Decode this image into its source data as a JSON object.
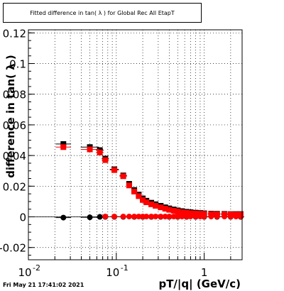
{
  "header": {
    "title": "Fitted difference in tan( λ ) for Global Rec All EtapT"
  },
  "footer": {
    "timestamp": "Fri May 21 17:41:02 2021"
  },
  "chart_data": {
    "type": "scatter",
    "title": "Fitted difference in tan( λ ) for Global Rec All EtapT",
    "xlabel": "pT/|q| (GeV/c)",
    "ylabel": "difference in tan( λ )",
    "xscale": "log",
    "xlim": [
      0.01,
      2.7
    ],
    "ylim": [
      -0.028,
      0.122
    ],
    "grid": true,
    "x_ticks": [
      {
        "value": 0.01,
        "label": "10",
        "sup": "-2"
      },
      {
        "value": 0.1,
        "label": "10",
        "sup": "-1"
      },
      {
        "value": 1,
        "label": "1",
        "sup": ""
      }
    ],
    "y_ticks": [
      {
        "value": -0.02,
        "label": "-0.02"
      },
      {
        "value": 0,
        "label": "0"
      },
      {
        "value": 0.02,
        "label": "0.02"
      },
      {
        "value": 0.04,
        "label": "0.04"
      },
      {
        "value": 0.06,
        "label": "0.06"
      },
      {
        "value": 0.08,
        "label": "0.08"
      },
      {
        "value": 0.1,
        "label": "0.1"
      },
      {
        "value": 0.12,
        "label": "0.12"
      }
    ],
    "series": [
      {
        "marker": "square",
        "color": "#000000",
        "x": [
          0.025,
          0.05,
          0.065,
          0.075,
          0.095,
          0.12,
          0.14,
          0.16,
          0.18,
          0.2,
          0.22,
          0.25,
          0.28,
          0.32,
          0.36,
          0.4,
          0.45,
          0.5,
          0.56,
          0.63,
          0.7,
          0.8,
          0.9,
          1.0,
          1.2,
          1.4,
          1.7,
          2.0,
          2.3,
          2.6
        ],
        "y": [
          0.0475,
          0.0455,
          0.0435,
          0.038,
          0.031,
          0.027,
          0.0215,
          0.0175,
          0.0145,
          0.012,
          0.0105,
          0.0092,
          0.0082,
          0.0072,
          0.0062,
          0.0055,
          0.0048,
          0.0042,
          0.0037,
          0.0033,
          0.003,
          0.0027,
          0.0025,
          0.0023,
          0.0021,
          0.002,
          0.0019,
          0.0018,
          0.0018,
          0.0018
        ]
      },
      {
        "marker": "square",
        "color": "#ff0000",
        "x": [
          0.025,
          0.05,
          0.065,
          0.075,
          0.095,
          0.12,
          0.14,
          0.16,
          0.18,
          0.2,
          0.22,
          0.25,
          0.28,
          0.32,
          0.36,
          0.4,
          0.45,
          0.5,
          0.56,
          0.63,
          0.7,
          0.8,
          0.9,
          1.0,
          1.2,
          1.4,
          1.7,
          2.0,
          2.3,
          2.6
        ],
        "y": [
          0.0455,
          0.044,
          0.042,
          0.037,
          0.0305,
          0.0265,
          0.0205,
          0.0165,
          0.0135,
          0.011,
          0.0095,
          0.0082,
          0.0072,
          0.0062,
          0.0053,
          0.0046,
          0.004,
          0.0035,
          0.003,
          0.0027,
          0.0024,
          0.0022,
          0.002,
          0.0019,
          0.0018,
          0.0017,
          0.0016,
          0.0016,
          0.0015,
          0.0015
        ]
      },
      {
        "marker": "circle",
        "color": "#000000",
        "x": [
          0.025,
          0.05,
          0.065,
          0.075,
          0.095,
          0.12,
          0.16,
          0.2,
          0.25,
          0.32,
          0.4,
          0.5,
          0.63,
          0.8,
          1.0,
          1.4,
          2.0,
          2.6
        ],
        "y": [
          -0.0005,
          -0.0003,
          0.0,
          0.0,
          0.0,
          0.0,
          0.0,
          0.0,
          0.0,
          0.0,
          0.0,
          0.0,
          0.0,
          0.0,
          0.0,
          0.0,
          0.0,
          0.0
        ]
      },
      {
        "marker": "circle",
        "color": "#ff0000",
        "x": [
          0.075,
          0.095,
          0.12,
          0.14,
          0.16,
          0.18,
          0.2,
          0.22,
          0.25,
          0.28,
          0.32,
          0.36,
          0.4,
          0.45,
          0.5,
          0.56,
          0.63,
          0.7,
          0.8,
          0.9,
          1.0,
          1.2,
          1.4,
          1.7,
          2.0,
          2.3,
          2.6
        ],
        "y": [
          0.0002,
          0.0002,
          0.0002,
          0.0002,
          0.0002,
          0.0002,
          0.0002,
          0.0002,
          0.0002,
          0.0002,
          0.0002,
          0.0002,
          0.0002,
          0.0002,
          0.0002,
          0.0002,
          0.0002,
          0.0002,
          0.0002,
          0.0002,
          0.0002,
          0.0002,
          0.0002,
          0.0002,
          0.0002,
          0.0002,
          0.0002
        ]
      }
    ]
  }
}
